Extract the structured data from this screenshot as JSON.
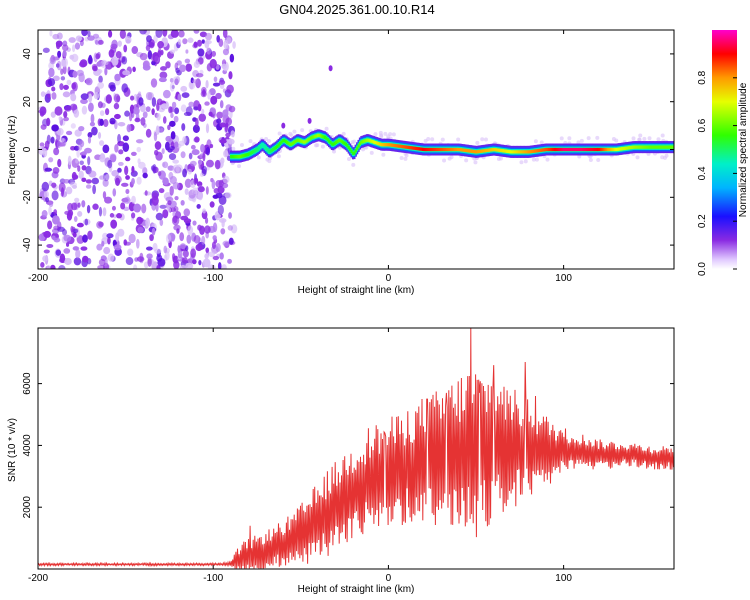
{
  "title": "GN04.2025.361.00.10.R14",
  "colors": {
    "snr_line": "#e53333",
    "noise_purple": "#7a1fe0",
    "axis": "#000000"
  },
  "chart_data": [
    {
      "type": "heatmap",
      "name": "spectrogram",
      "xlabel": "Height of straight line (km)",
      "ylabel": "Frequency (Hz)",
      "xlim": [
        -200,
        163
      ],
      "ylim": [
        -50,
        50
      ],
      "xticks": [
        -200,
        -100,
        0,
        100
      ],
      "xtick_labels": [
        "-200",
        "-100",
        "0",
        "100"
      ],
      "yticks": [
        -40,
        -20,
        0,
        20,
        40
      ],
      "ytick_labels": [
        "-40",
        "-20",
        "0",
        "20",
        "40"
      ],
      "noise_region_x": [
        -200,
        -90
      ],
      "ridge": {
        "x": [
          -90,
          -85,
          -80,
          -75,
          -72,
          -68,
          -64,
          -60,
          -56,
          -52,
          -48,
          -44,
          -40,
          -36,
          -32,
          -28,
          -24,
          -20,
          -16,
          -12,
          -8,
          -4,
          0,
          10,
          20,
          30,
          40,
          50,
          60,
          70,
          80,
          90,
          100,
          110,
          120,
          130,
          140,
          150,
          163
        ],
        "freq": [
          -3,
          -3,
          -2,
          0,
          2,
          -1,
          1,
          4,
          2,
          4,
          3,
          5,
          6,
          5,
          2,
          4,
          2,
          -2,
          3,
          4,
          3,
          2,
          2,
          1,
          0,
          0,
          0,
          -1,
          0,
          -1,
          -1,
          0,
          0,
          0,
          0,
          0,
          1,
          1,
          1
        ],
        "amp": [
          0.55,
          0.6,
          0.55,
          0.5,
          0.45,
          0.5,
          0.55,
          0.55,
          0.6,
          0.6,
          0.65,
          0.6,
          0.65,
          0.55,
          0.55,
          0.6,
          0.55,
          0.55,
          0.6,
          0.65,
          0.7,
          0.75,
          0.8,
          0.85,
          0.9,
          0.85,
          0.8,
          0.8,
          0.75,
          0.7,
          0.8,
          0.85,
          0.95,
          0.95,
          0.9,
          0.7,
          0.65,
          0.6,
          0.6
        ]
      },
      "colorbar": {
        "label": "Normalized spectral amplitude",
        "range": [
          0,
          1
        ],
        "ticks": [
          0.0,
          0.2,
          0.4,
          0.6,
          0.8
        ],
        "tick_labels": [
          "0.0",
          "0.2",
          "0.4",
          "0.6",
          "0.8"
        ]
      }
    },
    {
      "type": "line",
      "name": "snr",
      "xlabel": "Height of straight line (km)",
      "ylabel": "SNR (10 * v/v)",
      "xlim": [
        -200,
        163
      ],
      "ylim": [
        0,
        7800
      ],
      "xticks": [
        -200,
        -100,
        0,
        100
      ],
      "xtick_labels": [
        "-200",
        "-100",
        "0",
        "100"
      ],
      "yticks": [
        2000,
        4000,
        6000
      ],
      "ytick_labels": [
        "2000",
        "4000",
        "6000"
      ],
      "envelope": {
        "x": [
          -200,
          -150,
          -95,
          -90,
          -85,
          -80,
          -75,
          -70,
          -65,
          -60,
          -55,
          -50,
          -45,
          -40,
          -35,
          -30,
          -25,
          -20,
          -15,
          -10,
          -5,
          0,
          5,
          10,
          15,
          20,
          25,
          30,
          35,
          40,
          45,
          50,
          55,
          60,
          65,
          70,
          75,
          80,
          85,
          90,
          95,
          100,
          110,
          120,
          130,
          140,
          150,
          163
        ],
        "base": [
          150,
          150,
          150,
          160,
          300,
          400,
          500,
          600,
          700,
          800,
          900,
          1100,
          1300,
          1500,
          1800,
          2000,
          2300,
          2500,
          2700,
          2900,
          3000,
          3100,
          3200,
          3300,
          3400,
          3500,
          3500,
          3600,
          3700,
          3700,
          3800,
          3800,
          3900,
          3900,
          3900,
          3900,
          3900,
          3900,
          3800,
          3800,
          3800,
          3800,
          3800,
          3700,
          3700,
          3700,
          3600,
          3600
        ],
        "amp": [
          40,
          40,
          40,
          80,
          500,
          600,
          600,
          650,
          700,
          800,
          900,
          1000,
          1200,
          1300,
          1400,
          1500,
          1500,
          1600,
          1700,
          1800,
          1800,
          1800,
          1800,
          1900,
          2000,
          2100,
          2200,
          2300,
          2400,
          2600,
          2800,
          2800,
          2600,
          2400,
          2200,
          2000,
          1800,
          1600,
          1400,
          1200,
          1000,
          800,
          600,
          500,
          450,
          400,
          400,
          400
        ]
      },
      "peaks": [
        {
          "x": -79,
          "y": 1400
        },
        {
          "x": -2,
          "y": 4400
        },
        {
          "x": 22,
          "y": 5500
        },
        {
          "x": 33,
          "y": 5700
        },
        {
          "x": 47,
          "y": 7800
        },
        {
          "x": 52,
          "y": 5700
        },
        {
          "x": 60,
          "y": 6600
        },
        {
          "x": 66,
          "y": 5900
        },
        {
          "x": 78,
          "y": 6700
        },
        {
          "x": 84,
          "y": 5600
        }
      ]
    }
  ]
}
